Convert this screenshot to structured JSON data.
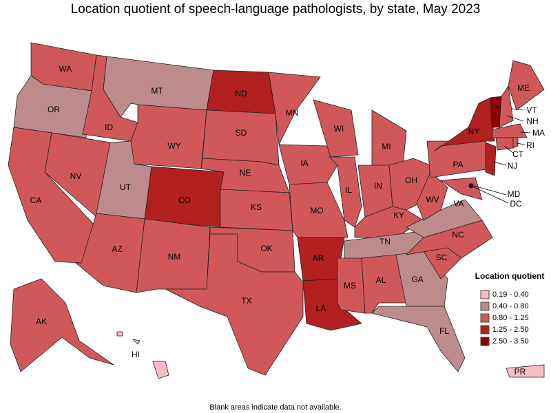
{
  "title": "Location quotient of speech-language pathologists, by state, May 2023",
  "legend": {
    "title": "Location quotient",
    "items": [
      {
        "label": "0.19 - 0.40",
        "color": "#f7bcc4"
      },
      {
        "label": "0.40 - 0.80",
        "color": "#bd8b8b"
      },
      {
        "label": "0.80 - 1.25",
        "color": "#d05858"
      },
      {
        "label": "1.25 - 2.50",
        "color": "#b22020"
      },
      {
        "label": "2.50 - 3.50",
        "color": "#8b0000"
      }
    ]
  },
  "states": [
    {
      "label": "WA",
      "class": 2
    },
    {
      "label": "OR",
      "class": 1
    },
    {
      "label": "CA",
      "class": 2
    },
    {
      "label": "NV",
      "class": 2
    },
    {
      "label": "ID",
      "class": 2
    },
    {
      "label": "MT",
      "class": 1
    },
    {
      "label": "WY",
      "class": 2
    },
    {
      "label": "UT",
      "class": 1
    },
    {
      "label": "CO",
      "class": 3
    },
    {
      "label": "AZ",
      "class": 2
    },
    {
      "label": "NM",
      "class": 2
    },
    {
      "label": "ND",
      "class": 3
    },
    {
      "label": "SD",
      "class": 2
    },
    {
      "label": "NE",
      "class": 2
    },
    {
      "label": "KS",
      "class": 2
    },
    {
      "label": "OK",
      "class": 2
    },
    {
      "label": "TX",
      "class": 2
    },
    {
      "label": "MN",
      "class": 2
    },
    {
      "label": "IA",
      "class": 2
    },
    {
      "label": "MO",
      "class": 2
    },
    {
      "label": "AR",
      "class": 3
    },
    {
      "label": "LA",
      "class": 3
    },
    {
      "label": "WI",
      "class": 2
    },
    {
      "label": "IL",
      "class": 2
    },
    {
      "label": "MI",
      "class": 2
    },
    {
      "label": "IN",
      "class": 2
    },
    {
      "label": "OH",
      "class": 2
    },
    {
      "label": "KY",
      "class": 2
    },
    {
      "label": "TN",
      "class": 1
    },
    {
      "label": "MS",
      "class": 2
    },
    {
      "label": "AL",
      "class": 2
    },
    {
      "label": "GA",
      "class": 1
    },
    {
      "label": "FL",
      "class": 1
    },
    {
      "label": "SC",
      "class": 2
    },
    {
      "label": "NC",
      "class": 2
    },
    {
      "label": "VA",
      "class": 1
    },
    {
      "label": "WV",
      "class": 2
    },
    {
      "label": "MD",
      "class": 2
    },
    {
      "label": "PA",
      "class": 2
    },
    {
      "label": "NY",
      "class": 3
    },
    {
      "label": "NJ",
      "class": 3
    },
    {
      "label": "VT",
      "class": 4
    },
    {
      "label": "NH",
      "class": 2
    },
    {
      "label": "ME",
      "class": 2
    },
    {
      "label": "MA",
      "class": 2
    },
    {
      "label": "CT",
      "class": 2
    },
    {
      "label": "RI",
      "class": 2
    },
    {
      "label": "DC",
      "class": 2
    },
    {
      "label": "AK",
      "class": 2
    },
    {
      "label": "HI",
      "class": 0
    },
    {
      "label": "PR",
      "class": 0
    }
  ],
  "note": "Blank areas indicate data not available."
}
